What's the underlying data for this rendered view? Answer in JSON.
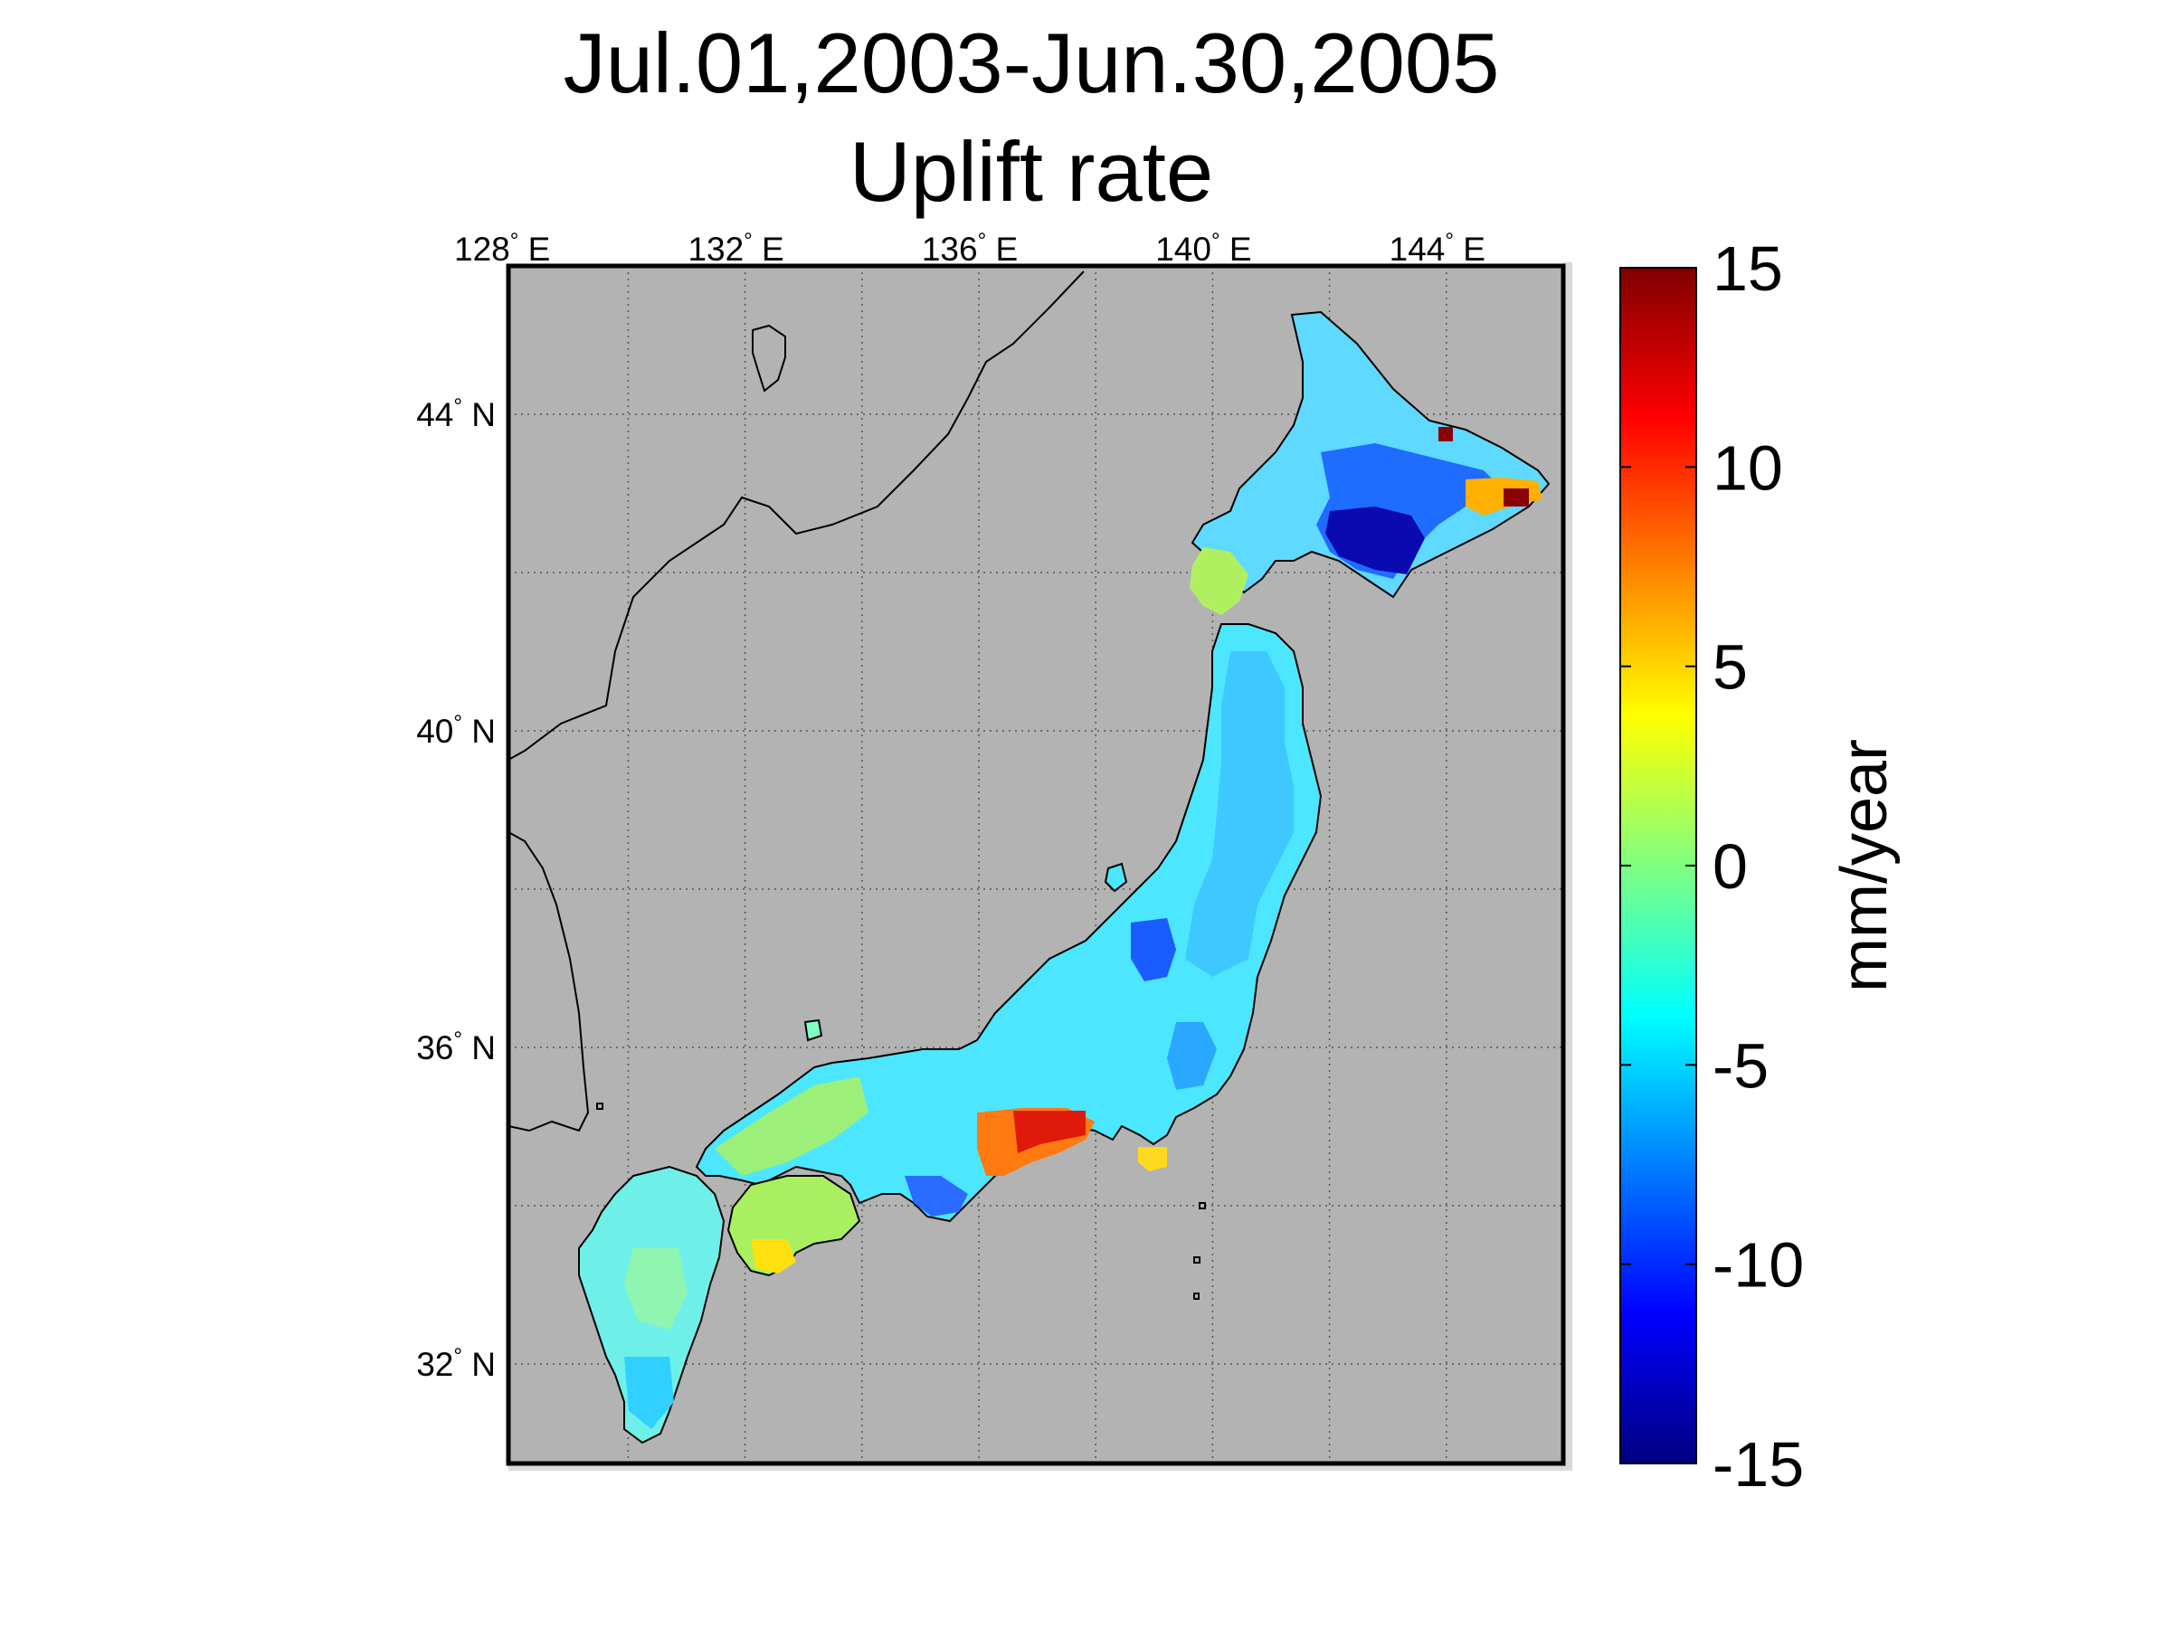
{
  "title": {
    "line1": "Jul.01,2003-Jun.30,2005",
    "line2": "Uplift rate"
  },
  "map": {
    "background_color": "#b3b3b3",
    "lon_ticks": [
      {
        "value": 128,
        "label": "128",
        "hemi": "E"
      },
      {
        "value": 132,
        "label": "132",
        "hemi": "E"
      },
      {
        "value": 136,
        "label": "136",
        "hemi": "E"
      },
      {
        "value": 140,
        "label": "140",
        "hemi": "E"
      },
      {
        "value": 144,
        "label": "144",
        "hemi": "E"
      }
    ],
    "lat_ticks": [
      {
        "value": 44,
        "label": "44",
        "hemi": "N"
      },
      {
        "value": 40,
        "label": "40",
        "hemi": "N"
      },
      {
        "value": 36,
        "label": "36",
        "hemi": "N"
      },
      {
        "value": 32,
        "label": "32",
        "hemi": "N"
      }
    ],
    "degree_symbol": "°",
    "grid": "dotted"
  },
  "colorbar": {
    "colormap": "jet",
    "min": -15,
    "max": 15,
    "ticks": [
      {
        "value": 15,
        "label": "15"
      },
      {
        "value": 10,
        "label": "10"
      },
      {
        "value": 5,
        "label": "5"
      },
      {
        "value": 0,
        "label": "0"
      },
      {
        "value": -5,
        "label": "-5"
      },
      {
        "value": -10,
        "label": "-10"
      },
      {
        "value": -15,
        "label": "-15"
      }
    ],
    "label": "mm/year"
  }
}
